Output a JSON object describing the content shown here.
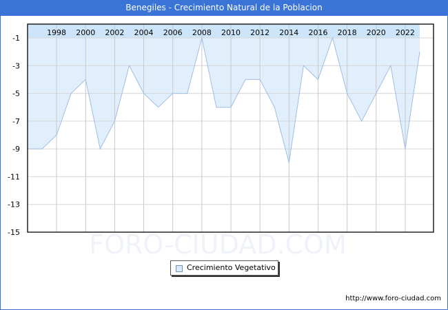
{
  "header": {
    "title": "Benegiles - Crecimiento Natural de la Poblacion"
  },
  "legend": {
    "label": "Crecimiento Vegetativo",
    "swatch_color": "#dbeafb"
  },
  "watermark": "FORO-CIUDAD.COM",
  "footer": {
    "url": "http://www.foro-ciudad.com"
  },
  "colors": {
    "title_bg": "#3a74d6",
    "fill": "#e1effc",
    "band": "#cde5fb",
    "line": "#9fbde8",
    "grid": "#d6d6d6"
  },
  "chart_data": {
    "type": "area",
    "title": "Benegiles - Crecimiento Natural de la Poblacion",
    "xlabel": "",
    "ylabel": "",
    "x": [
      1997,
      1998,
      1999,
      2000,
      2001,
      2002,
      2003,
      2004,
      2005,
      2006,
      2007,
      2008,
      2009,
      2010,
      2011,
      2012,
      2013,
      2014,
      2015,
      2016,
      2017,
      2018,
      2019,
      2020,
      2021,
      2022,
      2023
    ],
    "series": [
      {
        "name": "Crecimiento Vegetativo",
        "values": [
          -9,
          -8,
          -5,
          -4,
          -9,
          -7,
          -3,
          -5,
          -6,
          -5,
          -5,
          -1,
          -6,
          -6,
          -4,
          -4,
          -6,
          -10,
          -3,
          -4,
          -1,
          -5,
          -7,
          -5,
          -3,
          -9,
          -2
        ]
      }
    ],
    "x_tick_labels": [
      "1998",
      "2000",
      "2002",
      "2004",
      "2006",
      "2008",
      "2010",
      "2012",
      "2014",
      "2016",
      "2018",
      "2020",
      "2022"
    ],
    "y_tick_labels": [
      "-1",
      "-3",
      "-5",
      "-7",
      "-9",
      "-11",
      "-13",
      "-15"
    ],
    "ylim": [
      -15,
      0
    ],
    "grid": true,
    "legend_position": "bottom-center"
  }
}
